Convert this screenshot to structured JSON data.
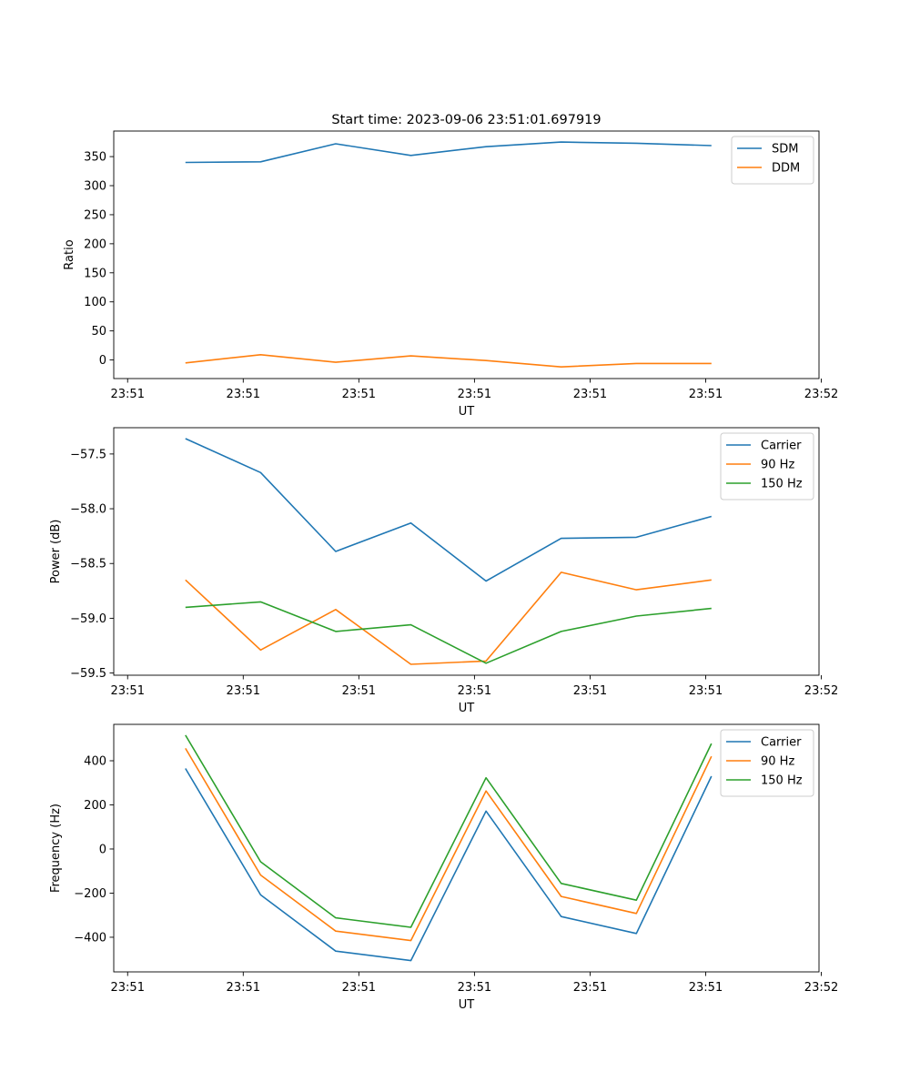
{
  "chart_data": [
    {
      "type": "line",
      "title": "Start time: 2023-09-06 23:51:01.697919",
      "xlabel": "UT",
      "ylabel": "Ratio",
      "x": [
        0.5,
        1.15,
        1.8,
        2.45,
        3.1,
        3.75,
        4.4,
        5.05
      ],
      "xlim": [
        -0.12,
        5.98
      ],
      "xticks": [
        0,
        1,
        2,
        3,
        4,
        5,
        6
      ],
      "xtick_labels": [
        "23:51",
        "23:51",
        "23:51",
        "23:51",
        "23:51",
        "23:51",
        "23:52"
      ],
      "ylim": [
        -32,
        394
      ],
      "yticks": [
        0,
        50,
        100,
        150,
        200,
        250,
        300,
        350
      ],
      "ytick_labels": [
        "0",
        "50",
        "100",
        "150",
        "200",
        "250",
        "300",
        "350"
      ],
      "legend_position": "top-right",
      "series": [
        {
          "name": "SDM",
          "color": "#1f77b4",
          "values": [
            340,
            341,
            372,
            352,
            367,
            375,
            373,
            369
          ]
        },
        {
          "name": "DDM",
          "color": "#ff7f0e",
          "values": [
            -5,
            9,
            -4,
            7,
            -1,
            -12,
            -6,
            -6
          ]
        }
      ]
    },
    {
      "type": "line",
      "title": "",
      "xlabel": "UT",
      "ylabel": "Power (dB)",
      "x": [
        0.5,
        1.15,
        1.8,
        2.45,
        3.1,
        3.75,
        4.4,
        5.05
      ],
      "xlim": [
        -0.12,
        5.98
      ],
      "xticks": [
        0,
        1,
        2,
        3,
        4,
        5,
        6
      ],
      "xtick_labels": [
        "23:51",
        "23:51",
        "23:51",
        "23:51",
        "23:51",
        "23:51",
        "23:52"
      ],
      "ylim": [
        -59.52,
        -57.26
      ],
      "yticks": [
        -59.5,
        -59.0,
        -58.5,
        -58.0,
        -57.5
      ],
      "ytick_labels": [
        "−59.5",
        "−59.0",
        "−58.5",
        "−58.0",
        "−57.5"
      ],
      "legend_position": "top-right",
      "series": [
        {
          "name": "Carrier",
          "color": "#1f77b4",
          "values": [
            -57.36,
            -57.67,
            -58.39,
            -58.13,
            -58.66,
            -58.27,
            -58.26,
            -58.07
          ]
        },
        {
          "name": "90 Hz",
          "color": "#ff7f0e",
          "values": [
            -58.65,
            -59.29,
            -58.92,
            -59.42,
            -59.39,
            -58.58,
            -58.74,
            -58.65
          ]
        },
        {
          "name": "150 Hz",
          "color": "#2ca02c",
          "values": [
            -58.9,
            -58.85,
            -59.12,
            -59.06,
            -59.41,
            -59.12,
            -58.98,
            -58.91
          ]
        }
      ]
    },
    {
      "type": "line",
      "title": "",
      "xlabel": "UT",
      "ylabel": "Frequency (Hz)",
      "x": [
        0.5,
        1.15,
        1.8,
        2.45,
        3.1,
        3.75,
        4.4,
        5.05
      ],
      "xlim": [
        -0.12,
        5.98
      ],
      "xticks": [
        0,
        1,
        2,
        3,
        4,
        5,
        6
      ],
      "xtick_labels": [
        "23:51",
        "23:51",
        "23:51",
        "23:51",
        "23:51",
        "23:51",
        "23:52"
      ],
      "ylim": [
        -557,
        565
      ],
      "yticks": [
        -400,
        -200,
        0,
        200,
        400
      ],
      "ytick_labels": [
        "−400",
        "−200",
        "0",
        "200",
        "400"
      ],
      "legend_position": "top-right",
      "series": [
        {
          "name": "Carrier",
          "color": "#1f77b4",
          "values": [
            365,
            -208,
            -463,
            -506,
            172,
            -306,
            -383,
            330
          ]
        },
        {
          "name": "90 Hz",
          "color": "#ff7f0e",
          "values": [
            456,
            -118,
            -372,
            -415,
            263,
            -215,
            -292,
            420
          ]
        },
        {
          "name": "150 Hz",
          "color": "#2ca02c",
          "values": [
            516,
            -58,
            -312,
            -355,
            323,
            -156,
            -232,
            478
          ]
        }
      ]
    }
  ]
}
